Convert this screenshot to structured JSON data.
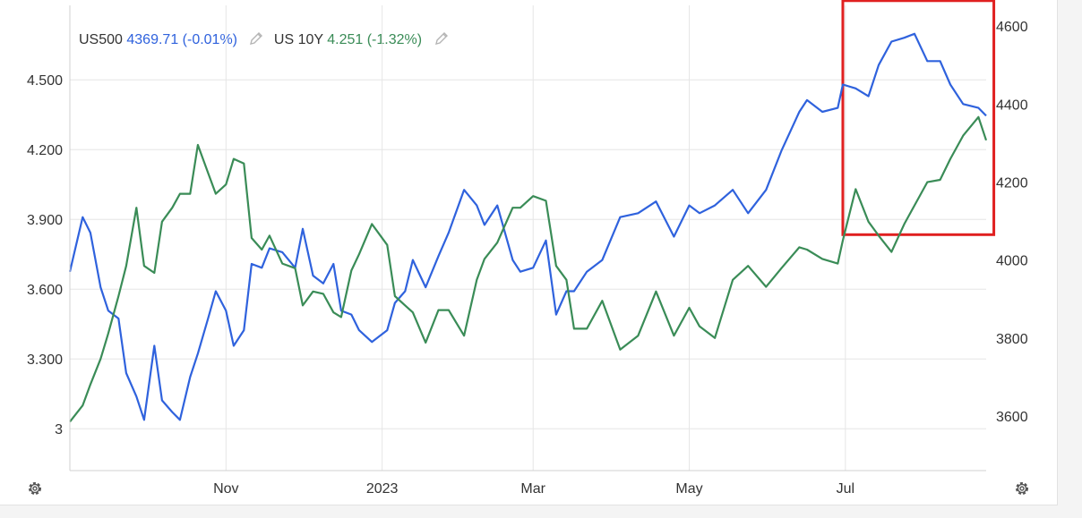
{
  "legend": {
    "series1_symbol": "US500",
    "series1_value": "4369.71 (-0.01%)",
    "series2_symbol": "US 10Y",
    "series2_value": "4.251 (-1.32%)"
  },
  "colors": {
    "us500": "#2f62dd",
    "us10y": "#3a8c57",
    "highlight": "#e02020",
    "grid": "#e6e6e6",
    "axis_text": "#333333"
  },
  "icons": {
    "edit": "pencil-icon",
    "settings": "gear-icon"
  },
  "chart_data": {
    "type": "line",
    "x_tick_labels": [
      "Nov",
      "2023",
      "Mar",
      "May",
      "Jul"
    ],
    "x_ticks": [
      "2022-11-01",
      "2023-01-01",
      "2023-03-01",
      "2023-05-01",
      "2023-07-01"
    ],
    "x_range": [
      "2022-09-01",
      "2023-08-25"
    ],
    "left_axis": {
      "series": "US 10Y",
      "ticks": [
        "3",
        "3.300",
        "3.600",
        "3.900",
        "4.200",
        "4.500"
      ],
      "range": [
        2.82,
        4.82
      ]
    },
    "right_axis": {
      "series": "US500",
      "ticks": [
        "3600",
        "3800",
        "4000",
        "4200",
        "4400",
        "4600"
      ],
      "range": [
        3460,
        4653
      ]
    },
    "grid": true,
    "highlight_box": {
      "x_from": "2023-06-30",
      "x_to": "2023-08-28",
      "y_from": 4065,
      "y_to": 4665,
      "axis": "right"
    },
    "series": [
      {
        "name": "US500",
        "axis": "right",
        "x": [
          "2022-09-01",
          "2022-09-06",
          "2022-09-09",
          "2022-09-13",
          "2022-09-16",
          "2022-09-20",
          "2022-09-23",
          "2022-09-27",
          "2022-09-30",
          "2022-10-04",
          "2022-10-07",
          "2022-10-11",
          "2022-10-14",
          "2022-10-18",
          "2022-10-21",
          "2022-10-25",
          "2022-10-28",
          "2022-11-01",
          "2022-11-04",
          "2022-11-08",
          "2022-11-11",
          "2022-11-15",
          "2022-11-18",
          "2022-11-23",
          "2022-11-28",
          "2022-12-01",
          "2022-12-05",
          "2022-12-09",
          "2022-12-13",
          "2022-12-16",
          "2022-12-20",
          "2022-12-23",
          "2022-12-28",
          "2023-01-03",
          "2023-01-06",
          "2023-01-10",
          "2023-01-13",
          "2023-01-18",
          "2023-01-23",
          "2023-01-27",
          "2023-02-02",
          "2023-02-07",
          "2023-02-10",
          "2023-02-15",
          "2023-02-21",
          "2023-02-24",
          "2023-03-01",
          "2023-03-06",
          "2023-03-10",
          "2023-03-14",
          "2023-03-17",
          "2023-03-22",
          "2023-03-28",
          "2023-04-04",
          "2023-04-11",
          "2023-04-18",
          "2023-04-25",
          "2023-05-01",
          "2023-05-05",
          "2023-05-11",
          "2023-05-18",
          "2023-05-24",
          "2023-05-31",
          "2023-06-06",
          "2023-06-13",
          "2023-06-16",
          "2023-06-22",
          "2023-06-28",
          "2023-06-30",
          "2023-07-05",
          "2023-07-10",
          "2023-07-14",
          "2023-07-19",
          "2023-07-24",
          "2023-07-28",
          "2023-08-02",
          "2023-08-07",
          "2023-08-11",
          "2023-08-16",
          "2023-08-22",
          "2023-08-25"
        ],
        "y": [
          3970,
          4110,
          4070,
          3930,
          3870,
          3850,
          3710,
          3650,
          3590,
          3780,
          3640,
          3610,
          3590,
          3700,
          3760,
          3850,
          3920,
          3870,
          3780,
          3820,
          3990,
          3980,
          4030,
          4020,
          3980,
          4080,
          3960,
          3940,
          3990,
          3870,
          3860,
          3820,
          3790,
          3820,
          3890,
          3920,
          4000,
          3930,
          4010,
          4070,
          4180,
          4140,
          4090,
          4140,
          4000,
          3970,
          3980,
          4050,
          3860,
          3920,
          3920,
          3970,
          4000,
          4110,
          4120,
          4150,
          4060,
          4140,
          4120,
          4140,
          4180,
          4120,
          4180,
          4280,
          4380,
          4410,
          4380,
          4390,
          4450,
          4440,
          4420,
          4500,
          4560,
          4570,
          4580,
          4510,
          4510,
          4450,
          4400,
          4390,
          4370
        ]
      },
      {
        "name": "US 10Y",
        "axis": "left",
        "x": [
          "2022-09-01",
          "2022-09-06",
          "2022-09-09",
          "2022-09-13",
          "2022-09-16",
          "2022-09-20",
          "2022-09-23",
          "2022-09-27",
          "2022-09-30",
          "2022-10-04",
          "2022-10-07",
          "2022-10-11",
          "2022-10-14",
          "2022-10-18",
          "2022-10-21",
          "2022-10-25",
          "2022-10-28",
          "2022-11-01",
          "2022-11-04",
          "2022-11-08",
          "2022-11-11",
          "2022-11-15",
          "2022-11-18",
          "2022-11-23",
          "2022-11-28",
          "2022-12-01",
          "2022-12-05",
          "2022-12-09",
          "2022-12-13",
          "2022-12-16",
          "2022-12-20",
          "2022-12-23",
          "2022-12-28",
          "2023-01-03",
          "2023-01-06",
          "2023-01-10",
          "2023-01-13",
          "2023-01-18",
          "2023-01-23",
          "2023-01-27",
          "2023-02-02",
          "2023-02-07",
          "2023-02-10",
          "2023-02-15",
          "2023-02-21",
          "2023-02-24",
          "2023-03-01",
          "2023-03-06",
          "2023-03-10",
          "2023-03-14",
          "2023-03-17",
          "2023-03-22",
          "2023-03-28",
          "2023-04-04",
          "2023-04-11",
          "2023-04-18",
          "2023-04-25",
          "2023-05-01",
          "2023-05-05",
          "2023-05-11",
          "2023-05-18",
          "2023-05-24",
          "2023-05-31",
          "2023-06-06",
          "2023-06-13",
          "2023-06-16",
          "2023-06-22",
          "2023-06-28",
          "2023-06-30",
          "2023-07-05",
          "2023-07-10",
          "2023-07-14",
          "2023-07-19",
          "2023-07-24",
          "2023-07-28",
          "2023-08-02",
          "2023-08-07",
          "2023-08-11",
          "2023-08-16",
          "2023-08-22",
          "2023-08-25"
        ],
        "y": [
          3.03,
          3.1,
          3.19,
          3.3,
          3.41,
          3.57,
          3.7,
          3.95,
          3.7,
          3.67,
          3.89,
          3.95,
          4.01,
          4.01,
          4.22,
          4.1,
          4.01,
          4.05,
          4.16,
          4.14,
          3.82,
          3.77,
          3.83,
          3.71,
          3.69,
          3.53,
          3.59,
          3.58,
          3.5,
          3.48,
          3.68,
          3.75,
          3.88,
          3.79,
          3.57,
          3.53,
          3.5,
          3.37,
          3.51,
          3.51,
          3.4,
          3.64,
          3.73,
          3.8,
          3.95,
          3.95,
          4.0,
          3.98,
          3.7,
          3.64,
          3.43,
          3.43,
          3.55,
          3.34,
          3.4,
          3.59,
          3.4,
          3.52,
          3.44,
          3.39,
          3.64,
          3.7,
          3.61,
          3.69,
          3.78,
          3.77,
          3.73,
          3.71,
          3.81,
          4.03,
          3.89,
          3.83,
          3.76,
          3.88,
          3.96,
          4.06,
          4.07,
          4.16,
          4.26,
          4.34,
          4.24
        ]
      }
    ]
  }
}
